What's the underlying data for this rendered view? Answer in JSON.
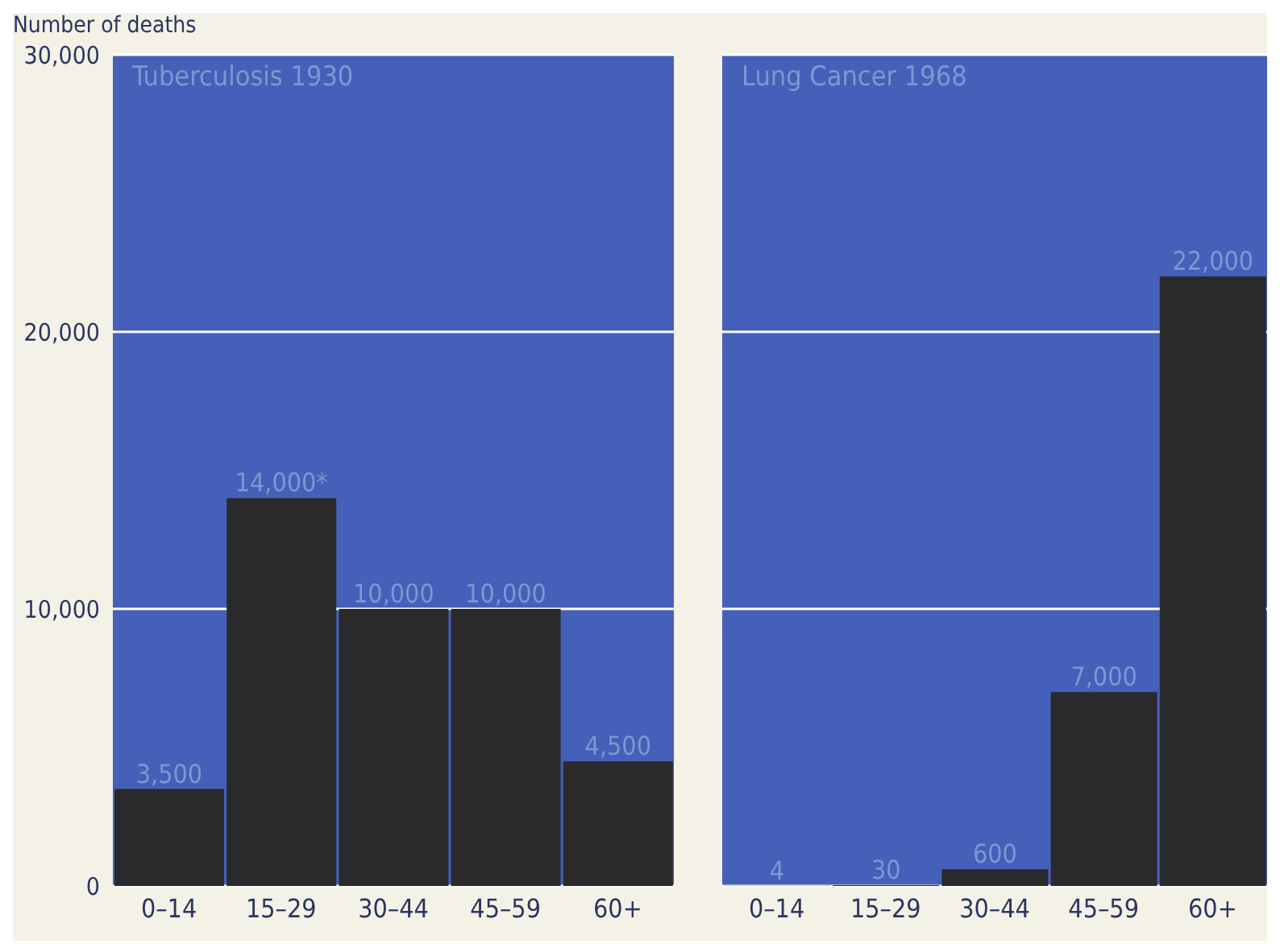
{
  "chart_data": [
    {
      "type": "bar",
      "title": "Tuberculosis 1930",
      "ylabel": "Number of deaths",
      "categories": [
        "0–14",
        "15–29",
        "30–44",
        "45–59",
        "60+"
      ],
      "values": [
        3500,
        14000,
        10000,
        10000,
        4500
      ],
      "color": "#2a2a2c",
      "value_labels": [
        "3,500",
        "14,000*",
        "10,000",
        "10,000",
        "4,500"
      ],
      "ylim": [
        0,
        30000
      ],
      "yticks": [
        0,
        {
          "value": 10000,
          "label": "10,000"
        },
        {
          "value": 20000,
          "label": "20,000"
        },
        {
          "value": 30000,
          "label": "30,000"
        }
      ],
      "grid": "y"
    },
    {
      "type": "bar",
      "title": "Lung Cancer 1968",
      "categories": [
        "0–14",
        "15–29",
        "30–44",
        "45–59",
        "60+"
      ],
      "values": [
        4,
        30,
        600,
        7000,
        22000
      ],
      "color": "#2a2a2c",
      "value_labels": [
        "4",
        "30",
        "600",
        "7,000",
        "22,000"
      ],
      "ylim": [
        0,
        30000
      ],
      "yticks": [
        0,
        10000,
        20000,
        30000
      ],
      "grid": "y",
      "tick_labels": "x"
    }
  ]
}
